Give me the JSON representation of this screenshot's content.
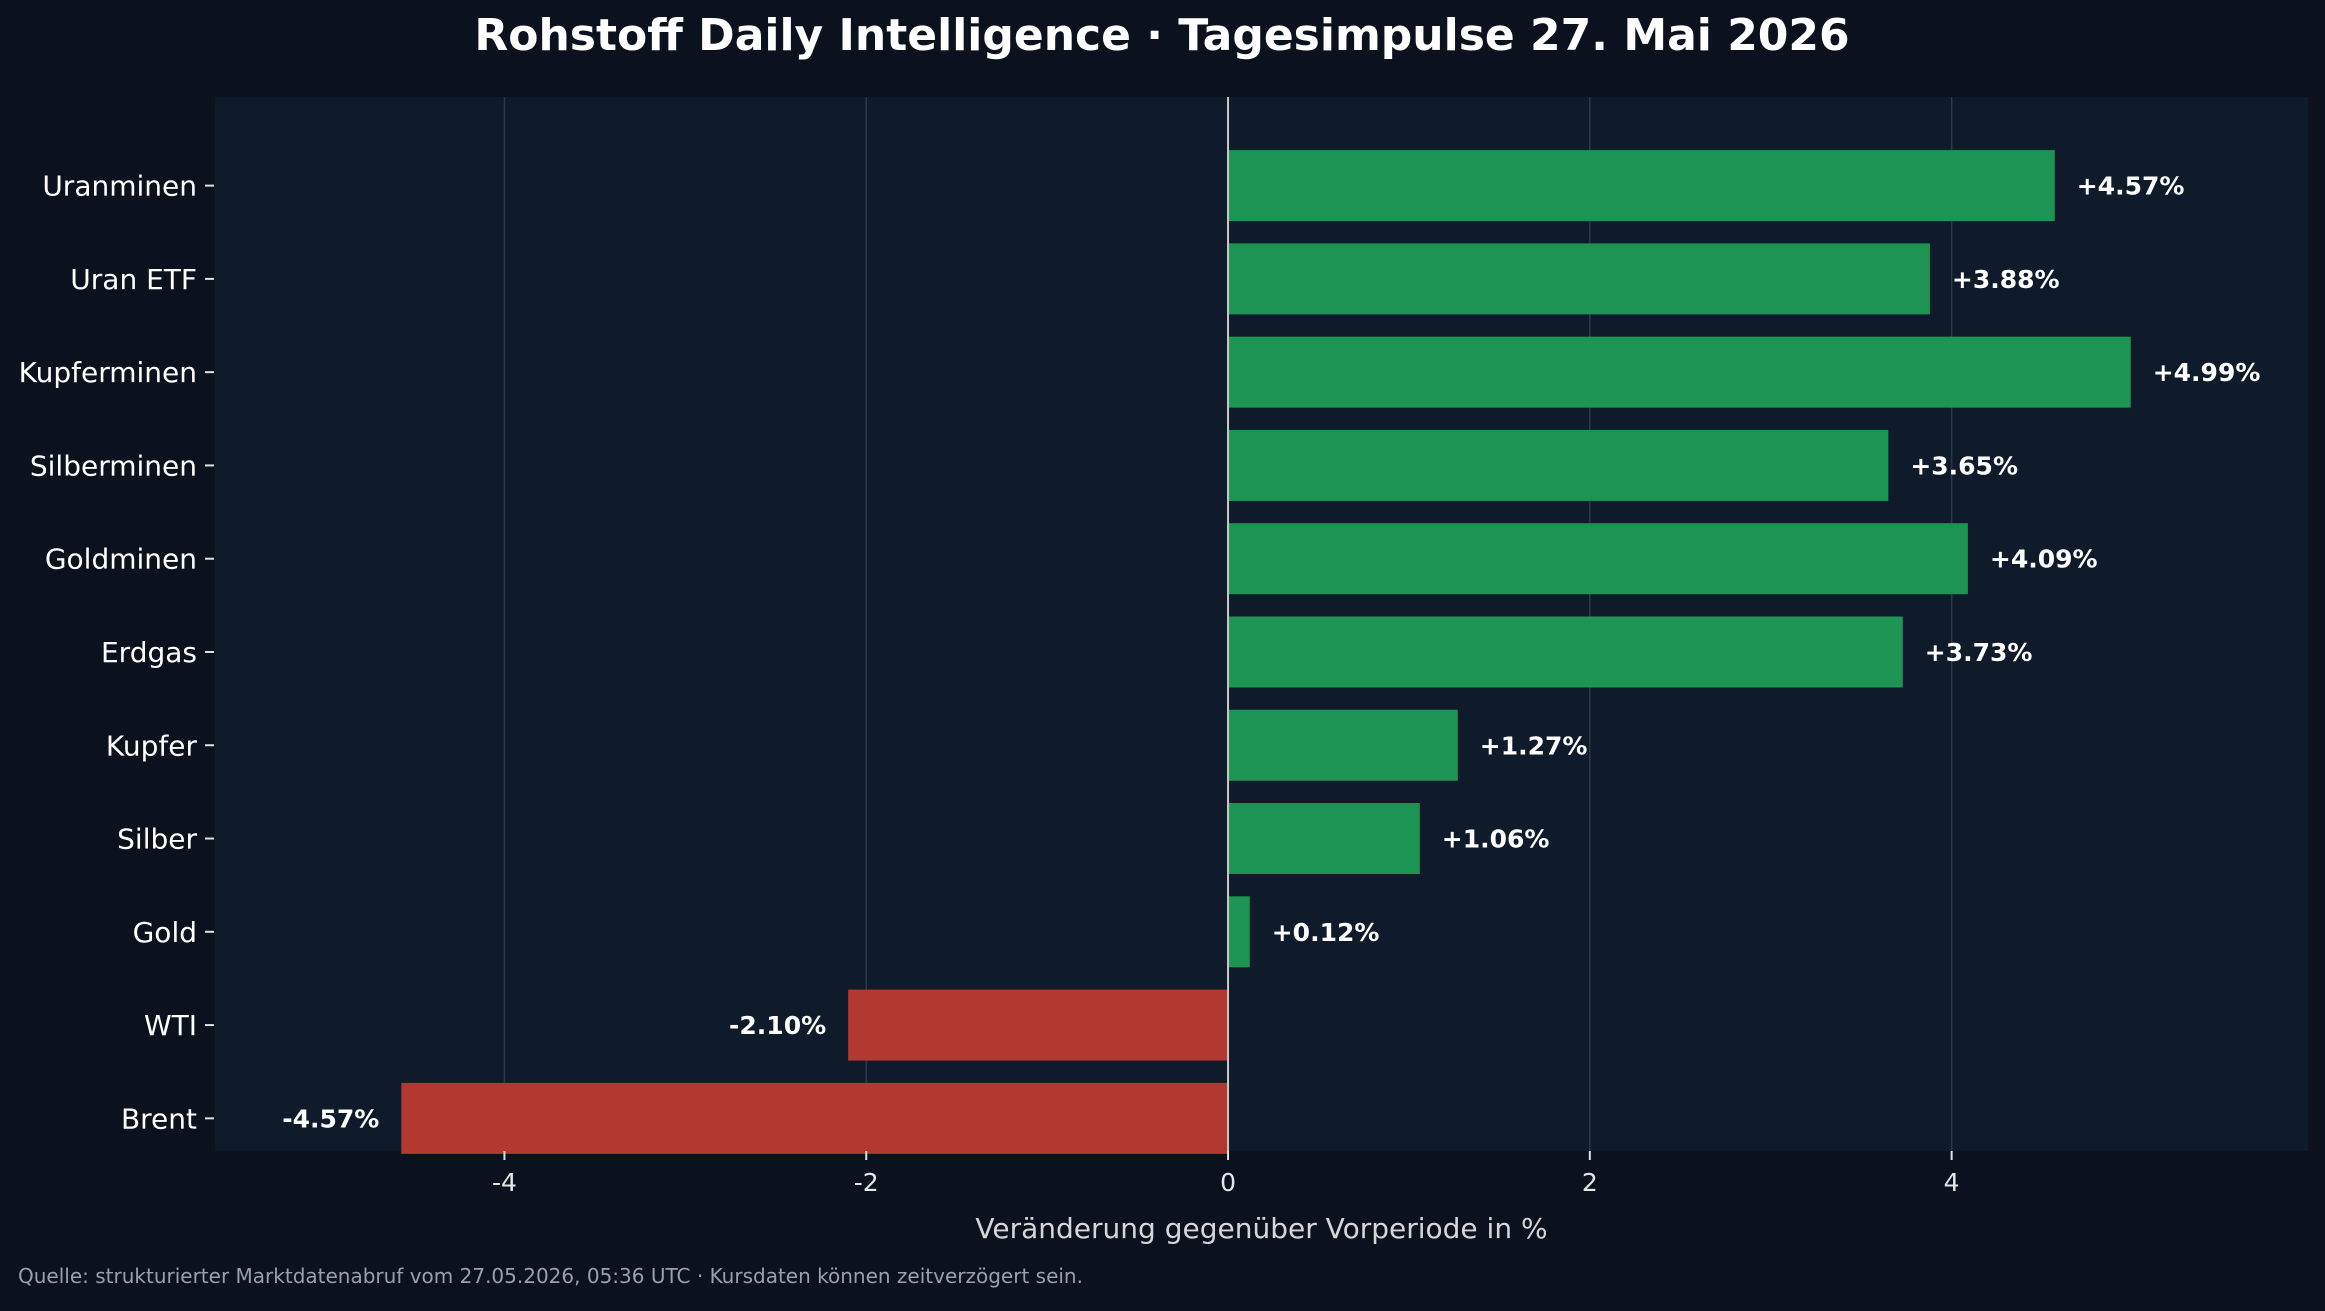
{
  "header": {
    "title": "Rohstoff Daily Intelligence · Tagesimpulse 27. Mai 2026"
  },
  "footer": {
    "source": "Quelle: strukturierter Marktdatenabruf vom 27.05.2026, 05:36 UTC · Kursdaten können zeitverzögert sein."
  },
  "colors": {
    "positive": "#1e9454",
    "negative": "#b3382f",
    "plot_background": "#0f1a2b",
    "page_background": "#0c121d"
  },
  "chart_data": {
    "type": "bar",
    "orientation": "horizontal",
    "title": "Rohstoff Daily Intelligence · Tagesimpulse 27. Mai 2026",
    "xlabel": "Veränderung gegenüber Vorperiode in %",
    "ylabel": "",
    "categories": [
      "Uranminen",
      "Uran ETF",
      "Kupferminen",
      "Silberminen",
      "Goldminen",
      "Erdgas",
      "Kupfer",
      "Silber",
      "Gold",
      "WTI",
      "Brent"
    ],
    "values": [
      4.57,
      3.88,
      4.99,
      3.65,
      4.09,
      3.73,
      1.27,
      1.06,
      0.12,
      -2.1,
      -4.57
    ],
    "value_labels": [
      "+4.57%",
      "+3.88%",
      "+4.99%",
      "+3.65%",
      "+4.09%",
      "+3.73%",
      "+1.27%",
      "+1.06%",
      "+0.12%",
      "-2.10%",
      "-4.57%"
    ],
    "xlim": [
      -5.6,
      5.97
    ],
    "xticks": [
      -4,
      -2,
      0,
      2,
      4
    ],
    "xtick_labels": [
      "-4",
      "-2",
      "0",
      "2",
      "4"
    ],
    "grid": "vertical",
    "legend": "none"
  }
}
